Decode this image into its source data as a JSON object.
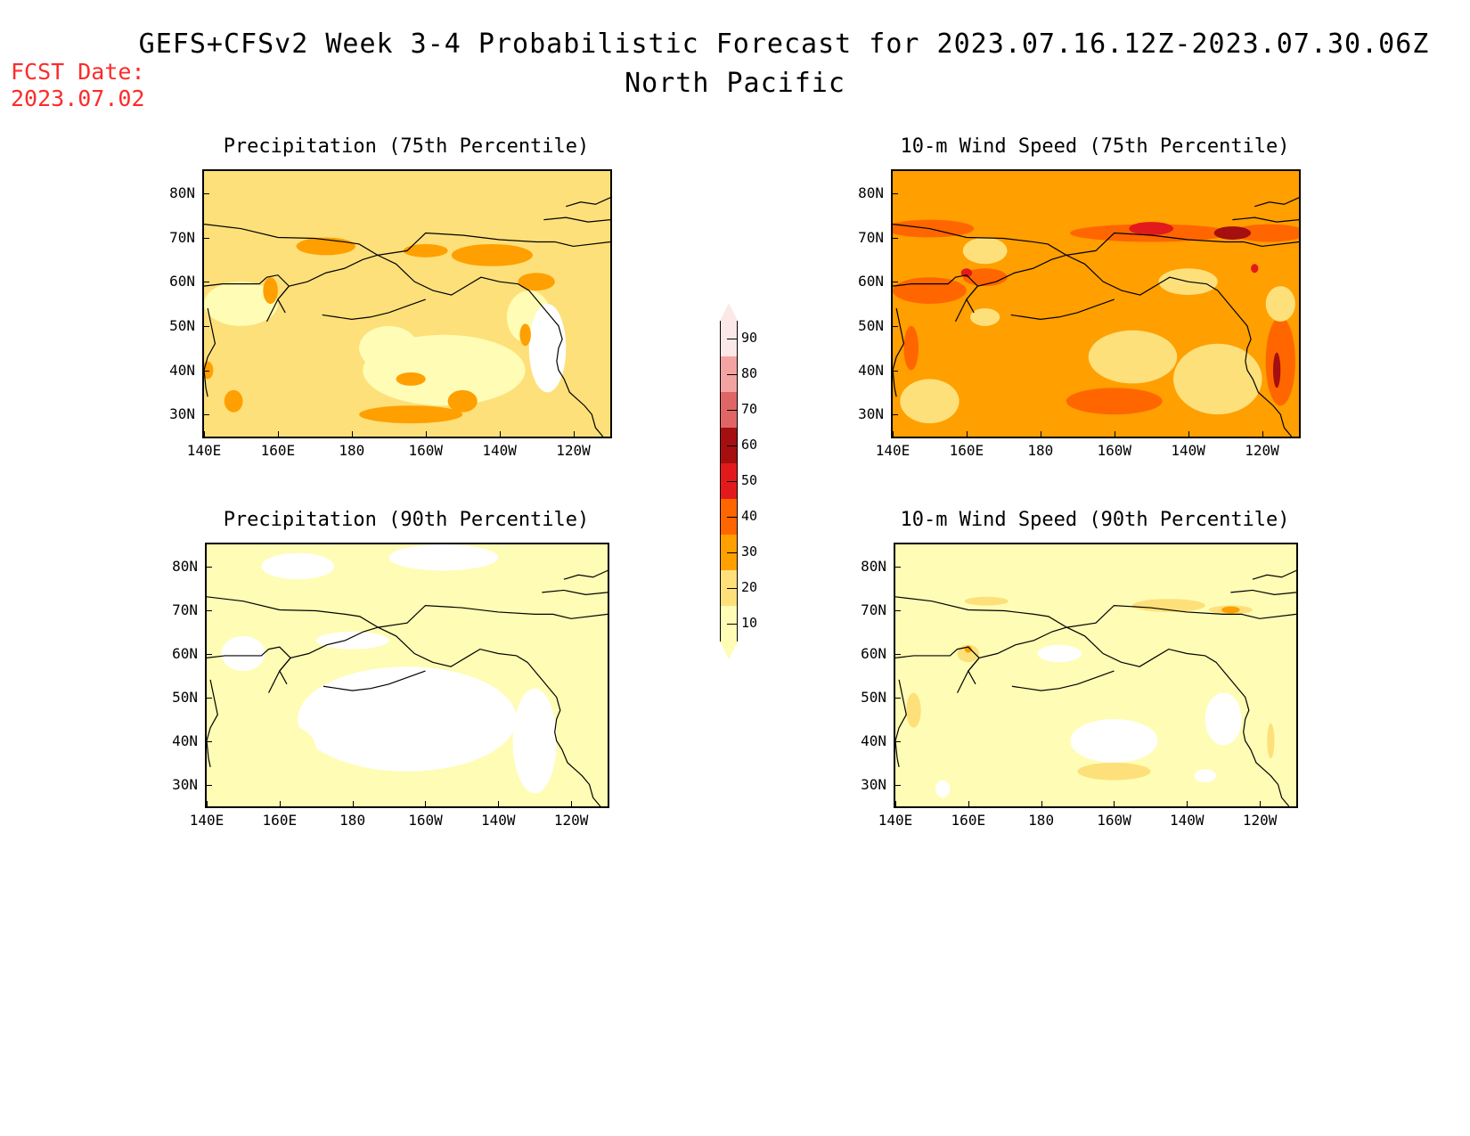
{
  "header": {
    "title": "GEFS+CFSv2 Week 3-4 Probabilistic Forecast for 2023.07.16.12Z-2023.07.30.06Z",
    "subtitle": "North Pacific",
    "fcst_label": "FCST Date:",
    "fcst_date": "2023.07.02",
    "fcst_color": "#ff2a2a"
  },
  "axes": {
    "lon_ticks": [
      "140E",
      "160E",
      "180",
      "160W",
      "140W",
      "120W"
    ],
    "lat_ticks": [
      "80N",
      "70N",
      "60N",
      "50N",
      "40N",
      "30N"
    ]
  },
  "panels": [
    {
      "title": "Precipitation (75th Percentile)",
      "base_class": 20,
      "variable": "precipitation",
      "percentile": 75
    },
    {
      "title": "10-m Wind Speed (75th Percentile)",
      "base_class": 30,
      "variable": "wind-speed",
      "percentile": 75
    },
    {
      "title": "Precipitation (90th Percentile)",
      "base_class": 10,
      "variable": "precipitation",
      "percentile": 90
    },
    {
      "title": "10-m Wind Speed (90th Percentile)",
      "base_class": 10,
      "variable": "wind-speed",
      "percentile": 90
    }
  ],
  "colorbar": {
    "labels": [
      "90",
      "80",
      "70",
      "60",
      "50",
      "40",
      "30",
      "20",
      "10"
    ],
    "colors": [
      "#fde8e8",
      "#f4a3a3",
      "#e06666",
      "#a50f0f",
      "#e31a1c",
      "#ff6600",
      "#ff9f00",
      "#fde07a",
      "#fffcb5"
    ]
  }
}
